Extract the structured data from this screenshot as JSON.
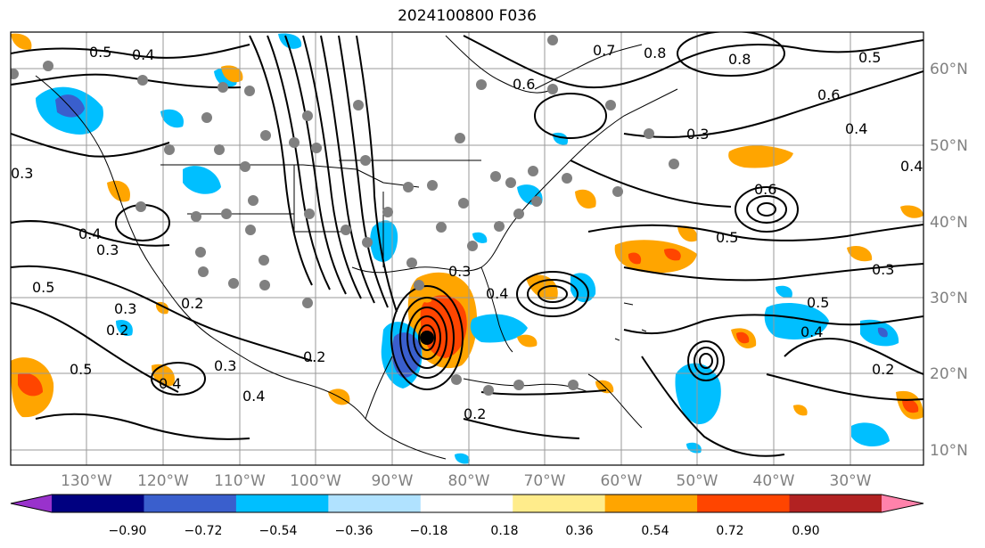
{
  "title": "2024100800 F036",
  "map": {
    "lon_labels": [
      "130°W",
      "120°W",
      "110°W",
      "100°W",
      "90°W",
      "80°W",
      "70°W",
      "60°W",
      "50°W",
      "40°W",
      "30°W"
    ],
    "lat_labels": [
      "60°N",
      "50°N",
      "40°N",
      "30°N",
      "20°N",
      "10°N"
    ],
    "contour_labels": [
      "0.4",
      "0.5",
      "0.7",
      "0.8",
      "0.6",
      "0.3",
      "0.3",
      "0.2",
      "0.5",
      "0.4",
      "0.3",
      "0.4",
      "0.5",
      "0.3",
      "0.2",
      "0.3",
      "0.4",
      "0.2",
      "0.5",
      "0.6",
      "0.8",
      "0.5",
      "0.3",
      "0.4",
      "0.5",
      "0.4",
      "0.2",
      "0.3",
      "0.4",
      "0.2",
      "0.6",
      "0.4"
    ]
  },
  "colorbar": {
    "ticks": [
      "−0.90",
      "−0.72",
      "−0.54",
      "−0.36",
      "−0.18",
      "0.18",
      "0.36",
      "0.54",
      "0.72",
      "0.90"
    ],
    "colors": [
      "#9932cc",
      "#000080",
      "#3a5fcd",
      "#00bfff",
      "#b0e2ff",
      "#ffffff",
      "#ffec8b",
      "#ffa500",
      "#ff4500",
      "#b22222",
      "#ff82ab"
    ]
  },
  "colors": {
    "contour": "#000000",
    "grid": "#9a9a9a",
    "station_dot": "#808080",
    "storm_center": "#000000"
  }
}
